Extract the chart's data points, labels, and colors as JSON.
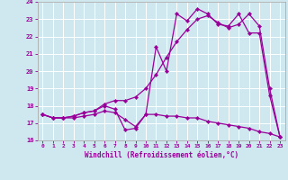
{
  "xlabel": "Windchill (Refroidissement éolien,°C)",
  "bg_color": "#cfe8f0",
  "line_color": "#990099",
  "xlim": [
    -0.5,
    23.5
  ],
  "ylim": [
    16,
    24
  ],
  "yticks": [
    16,
    17,
    18,
    19,
    20,
    21,
    22,
    23,
    24
  ],
  "xticks": [
    0,
    1,
    2,
    3,
    4,
    5,
    6,
    7,
    8,
    9,
    10,
    11,
    12,
    13,
    14,
    15,
    16,
    17,
    18,
    19,
    20,
    21,
    22,
    23
  ],
  "line_windchill_x": [
    0,
    1,
    2,
    3,
    4,
    5,
    6,
    7,
    8,
    9,
    10,
    11,
    12,
    13,
    14,
    15,
    16,
    17,
    18,
    19,
    20,
    21,
    22,
    23
  ],
  "line_windchill_y": [
    17.5,
    17.3,
    17.3,
    17.3,
    17.4,
    17.5,
    17.7,
    17.6,
    17.2,
    16.8,
    17.5,
    17.5,
    17.4,
    17.4,
    17.3,
    17.3,
    17.1,
    17.0,
    16.9,
    16.8,
    16.7,
    16.5,
    16.4,
    16.2
  ],
  "line_temp_x": [
    0,
    1,
    2,
    3,
    4,
    5,
    6,
    7,
    8,
    9,
    10,
    11,
    12,
    13,
    14,
    15,
    16,
    17,
    18,
    19,
    20,
    21,
    22,
    23
  ],
  "line_temp_y": [
    17.5,
    17.3,
    17.3,
    17.4,
    17.6,
    17.7,
    18.1,
    18.3,
    18.3,
    18.5,
    19.0,
    19.8,
    20.8,
    21.7,
    22.4,
    23.0,
    23.2,
    22.8,
    22.5,
    22.7,
    23.3,
    22.6,
    19.0,
    16.2
  ],
  "line_peak_x": [
    0,
    1,
    2,
    3,
    4,
    5,
    6,
    7,
    8,
    9,
    10,
    11,
    12,
    13,
    14,
    15,
    16,
    17,
    18,
    19,
    20,
    21,
    22,
    23
  ],
  "line_peak_y": [
    17.5,
    17.3,
    17.3,
    17.4,
    17.6,
    17.7,
    18.0,
    17.8,
    16.6,
    16.7,
    17.5,
    21.4,
    20.0,
    23.3,
    22.9,
    23.6,
    23.3,
    22.7,
    22.6,
    23.3,
    22.2,
    22.2,
    18.6,
    16.2
  ]
}
